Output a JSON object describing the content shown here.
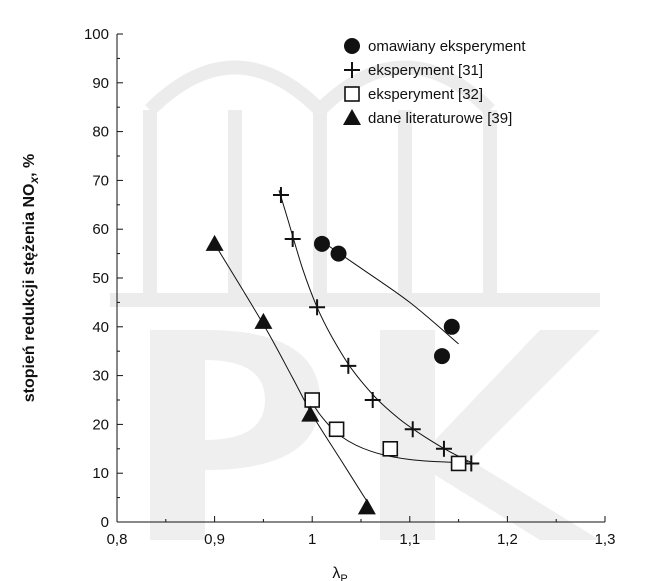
{
  "header_fragment": "",
  "chart_data": {
    "type": "scatter",
    "title": "",
    "xlabel": "λ",
    "xlabel_sub": "P",
    "ylabel": "stopień redukcji stężenia NO",
    "ylabel_sub": "x",
    "ylabel_suffix": ", %",
    "xlim": [
      0.8,
      1.3
    ],
    "ylim": [
      0,
      100
    ],
    "x_ticks": [
      0.8,
      0.9,
      1.0,
      1.1,
      1.2,
      1.3
    ],
    "x_tick_labels": [
      "0,8",
      "0,9",
      "1",
      "1,1",
      "1,2",
      "1,3"
    ],
    "y_ticks": [
      0,
      10,
      20,
      30,
      40,
      50,
      60,
      70,
      80,
      90,
      100
    ],
    "y_tick_labels": [
      "0",
      "10",
      "20",
      "30",
      "40",
      "50",
      "60",
      "70",
      "80",
      "90",
      "100"
    ],
    "grid": false,
    "legend_position": "top-right",
    "series": [
      {
        "name": "omawiany eksperyment",
        "marker": "filled-circle",
        "points": [
          [
            1.01,
            57
          ],
          [
            1.027,
            55
          ],
          [
            1.143,
            40
          ],
          [
            1.133,
            34
          ]
        ],
        "curve": [
          [
            1.01,
            57.5
          ],
          [
            1.05,
            52
          ],
          [
            1.1,
            45
          ],
          [
            1.15,
            36.5
          ]
        ]
      },
      {
        "name": "eksperyment [31]",
        "marker": "plus",
        "points": [
          [
            0.968,
            67
          ],
          [
            0.98,
            58
          ],
          [
            1.005,
            44
          ],
          [
            1.037,
            32
          ],
          [
            1.062,
            25
          ],
          [
            1.103,
            19
          ],
          [
            1.135,
            15
          ],
          [
            1.163,
            12
          ]
        ],
        "curve": [
          [
            0.966,
            68
          ],
          [
            0.975,
            62
          ],
          [
            0.99,
            52
          ],
          [
            1.005,
            44
          ],
          [
            1.02,
            38
          ],
          [
            1.04,
            31.5
          ],
          [
            1.065,
            25.5
          ],
          [
            1.09,
            21
          ],
          [
            1.115,
            17.5
          ],
          [
            1.14,
            14.5
          ],
          [
            1.165,
            12
          ]
        ]
      },
      {
        "name": "eksperyment [32]",
        "marker": "open-square",
        "points": [
          [
            1.0,
            25
          ],
          [
            1.025,
            19
          ],
          [
            1.08,
            15
          ],
          [
            1.15,
            12
          ]
        ],
        "curve": [
          [
            0.995,
            26
          ],
          [
            1.01,
            21.5
          ],
          [
            1.03,
            17.5
          ],
          [
            1.06,
            14.5
          ],
          [
            1.1,
            12.8
          ],
          [
            1.15,
            12.2
          ],
          [
            1.16,
            12.5
          ]
        ]
      },
      {
        "name": "dane literaturowe [39]",
        "marker": "filled-triangle",
        "points": [
          [
            0.9,
            57
          ],
          [
            0.95,
            41
          ],
          [
            0.998,
            22
          ],
          [
            1.056,
            3
          ]
        ],
        "curve": [
          [
            0.9,
            57
          ],
          [
            0.95,
            40.5
          ],
          [
            0.98,
            29.5
          ],
          [
            1.0,
            22
          ],
          [
            1.03,
            12.5
          ],
          [
            1.06,
            3
          ]
        ]
      }
    ]
  }
}
